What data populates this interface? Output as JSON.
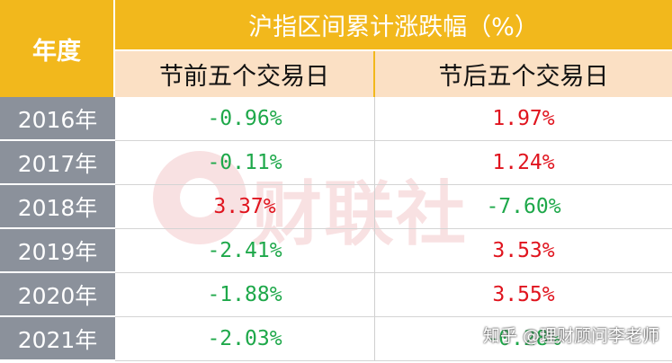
{
  "table": {
    "year_header": "年度",
    "main_header": "沪指区间累计涨跌幅（%）",
    "col_before": "节前五个交易日",
    "col_after": "节后五个交易日",
    "rows": [
      {
        "year": "2016年",
        "before": "-0.96%",
        "after": "1.97%"
      },
      {
        "year": "2017年",
        "before": "-0.11%",
        "after": "1.24%"
      },
      {
        "year": "2018年",
        "before": "3.37%",
        "after": "-7.60%"
      },
      {
        "year": "2019年",
        "before": "-2.41%",
        "after": "3.53%"
      },
      {
        "year": "2020年",
        "before": "-1.88%",
        "after": "3.55%"
      },
      {
        "year": "2021年",
        "before": "-2.03%",
        "after": "-0.28%"
      }
    ]
  },
  "watermark": {
    "text": "财联社"
  },
  "credit": "知乎 @理财顾问李老师",
  "colors": {
    "header_bg": "#f2b81c",
    "subheader_bg": "#fbe0c4",
    "year_bg": "#8b919b",
    "positive": "#e0141e",
    "negative": "#1ea84a"
  }
}
